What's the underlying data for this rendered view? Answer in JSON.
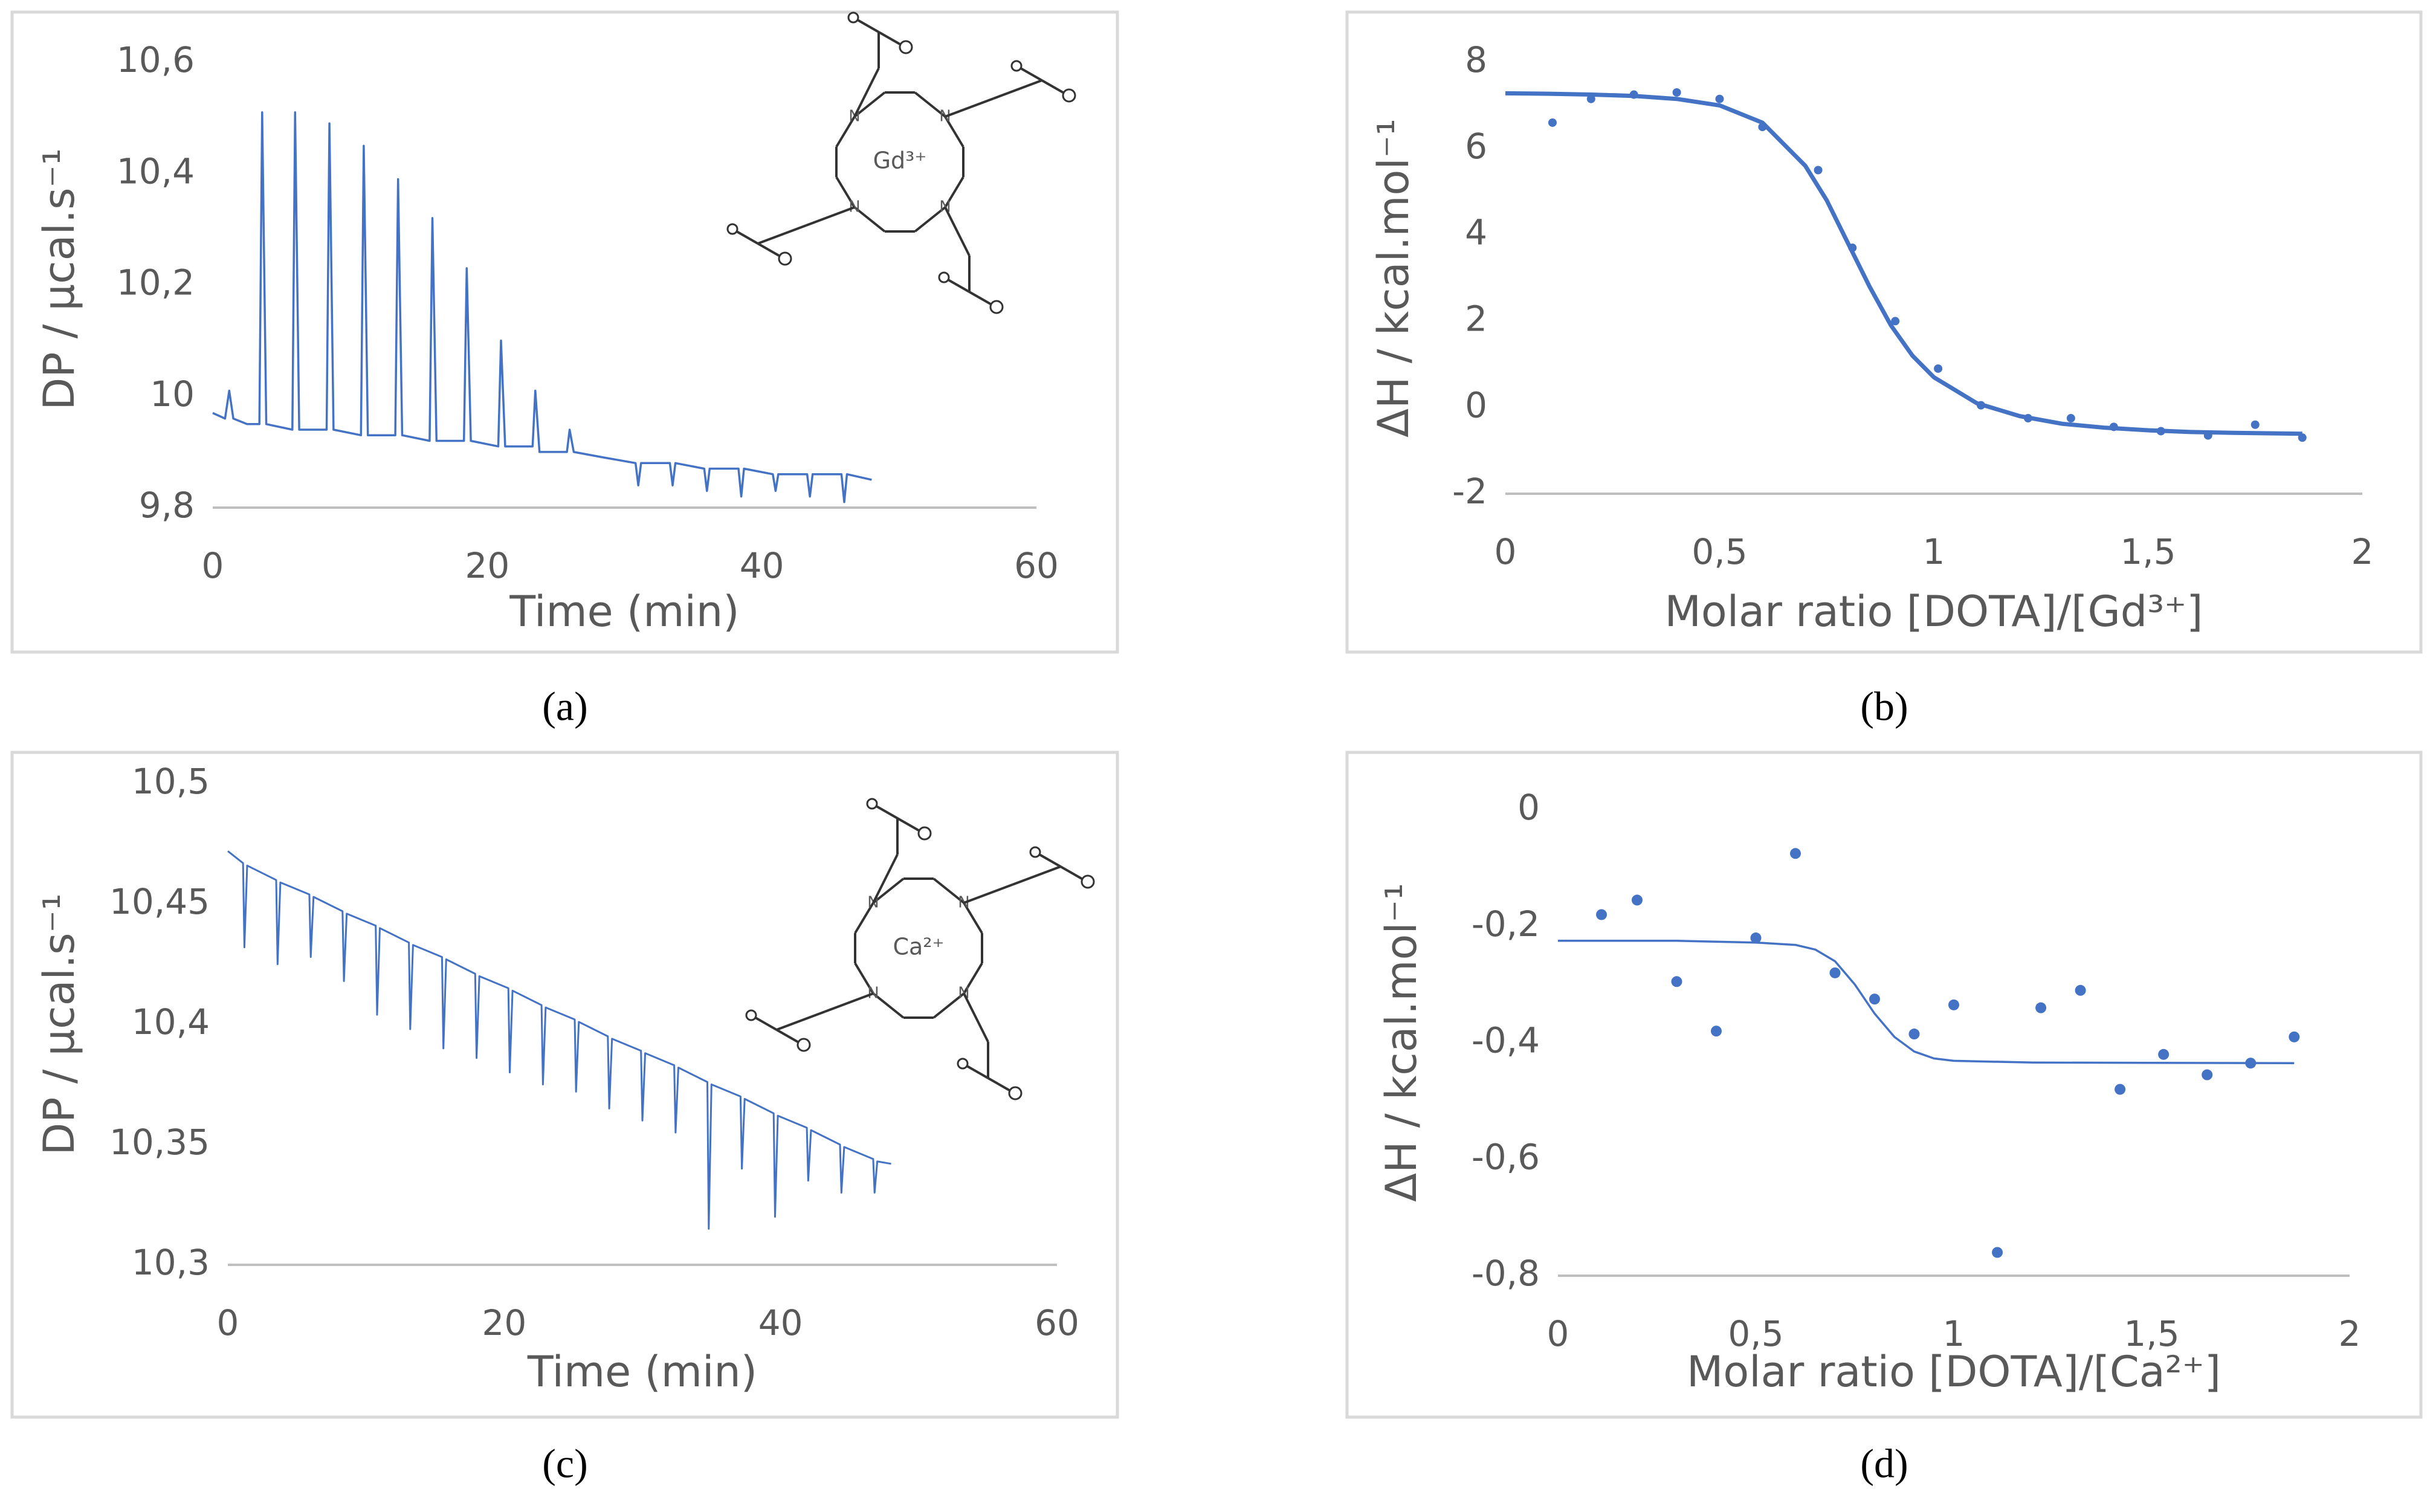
{
  "chart_data": [
    {
      "type": "line",
      "panel_label": "(a)",
      "ylabel": "DP / µcal.s⁻¹",
      "xlabel": "Time (min)",
      "annotation": {
        "text": "Gd³⁺",
        "color": "#e8393a"
      },
      "xlim": [
        0,
        60
      ],
      "xticks": [
        0,
        20,
        40,
        60
      ],
      "ylim": [
        9.8,
        10.6
      ],
      "yticks": [
        {
          "value": 9.8,
          "label": "9,8"
        },
        10,
        {
          "value": 10.2,
          "label": "10,2"
        },
        {
          "value": 10.4,
          "label": "10,4"
        },
        {
          "value": 10.6,
          "label": "10,6"
        }
      ],
      "grid": false,
      "series": [
        {
          "color": "#4472c4",
          "x": [
            0,
            0.9,
            1.2,
            1.5,
            2.5,
            3.4,
            3.6,
            3.9,
            5.8,
            6.0,
            6.3,
            8.3,
            8.5,
            8.8,
            10.8,
            11.0,
            11.3,
            13.3,
            13.5,
            13.8,
            15.8,
            16.0,
            16.3,
            18.3,
            18.5,
            18.8,
            20.8,
            21.0,
            21.3,
            23.3,
            23.5,
            23.8,
            25.8,
            26.0,
            26.3,
            28.5,
            30.8,
            31.0,
            31.2,
            33.3,
            33.5,
            33.7,
            35.8,
            36.0,
            36.2,
            38.3,
            38.5,
            38.7,
            40.8,
            41.0,
            41.2,
            43.3,
            43.5,
            43.7,
            45.8,
            46.0,
            46.2,
            48
          ],
          "values": [
            9.97,
            9.96,
            10.01,
            9.96,
            9.95,
            9.95,
            10.51,
            9.95,
            9.94,
            10.51,
            9.94,
            9.94,
            10.49,
            9.94,
            9.93,
            10.45,
            9.93,
            9.93,
            10.39,
            9.93,
            9.92,
            10.32,
            9.92,
            9.92,
            10.23,
            9.92,
            9.91,
            10.1,
            9.91,
            9.91,
            10.01,
            9.9,
            9.9,
            9.94,
            9.9,
            9.89,
            9.88,
            9.84,
            9.88,
            9.88,
            9.84,
            9.88,
            9.87,
            9.83,
            9.87,
            9.87,
            9.82,
            9.87,
            9.86,
            9.83,
            9.86,
            9.86,
            9.82,
            9.86,
            9.86,
            9.81,
            9.86,
            9.85
          ]
        }
      ]
    },
    {
      "type": "scatter",
      "panel_label": "(b)",
      "ylabel": "ΔH / kcal.mol⁻¹",
      "xlabel": "Molar ratio  [DOTA]/[Gd³⁺]",
      "xlim": [
        0,
        2
      ],
      "xticks": [
        0,
        {
          "value": 0.5,
          "label": "0,5"
        },
        1,
        {
          "value": 1.5,
          "label": "1,5"
        },
        2
      ],
      "ylim": [
        -2,
        8
      ],
      "yticks": [
        -2,
        0,
        2,
        4,
        6,
        8
      ],
      "grid": false,
      "series": [
        {
          "color": "#4472c4",
          "style": "markers",
          "x": [
            0.11,
            0.2,
            0.3,
            0.4,
            0.5,
            0.6,
            0.73,
            0.81,
            0.91,
            1.01,
            1.11,
            1.22,
            1.32,
            1.42,
            1.53,
            1.64,
            1.75,
            1.86
          ],
          "values": [
            6.6,
            7.15,
            7.25,
            7.3,
            7.15,
            6.5,
            5.5,
            3.7,
            2.0,
            0.9,
            0.05,
            -0.25,
            -0.25,
            -0.45,
            -0.55,
            -0.65,
            -0.4,
            -0.7
          ]
        },
        {
          "color": "#4472c4",
          "style": "line",
          "x": [
            0,
            0.1,
            0.2,
            0.3,
            0.4,
            0.5,
            0.6,
            0.7,
            0.75,
            0.8,
            0.85,
            0.9,
            0.95,
            1.0,
            1.1,
            1.2,
            1.3,
            1.4,
            1.5,
            1.6,
            1.7,
            1.86
          ],
          "values": [
            7.28,
            7.27,
            7.25,
            7.22,
            7.15,
            7.0,
            6.6,
            5.6,
            4.8,
            3.8,
            2.8,
            1.9,
            1.2,
            0.7,
            0.1,
            -0.2,
            -0.38,
            -0.47,
            -0.53,
            -0.57,
            -0.59,
            -0.61
          ]
        }
      ]
    },
    {
      "type": "line",
      "panel_label": "(c)",
      "ylabel": "DP / µcal.s⁻¹",
      "xlabel": "Time (min)",
      "annotation": {
        "text": "Ca²⁺",
        "color": "#5a9e3c"
      },
      "xlim": [
        0,
        60
      ],
      "xticks": [
        0,
        20,
        40,
        60
      ],
      "ylim": [
        10.3,
        10.5
      ],
      "yticks": [
        {
          "value": 10.3,
          "label": "10,3"
        },
        {
          "value": 10.35,
          "label": "10,35"
        },
        {
          "value": 10.4,
          "label": "10,4"
        },
        {
          "value": 10.45,
          "label": "10,45"
        },
        {
          "value": 10.5,
          "label": "10,5"
        }
      ],
      "grid": false,
      "series": [
        {
          "color": "#4472c4",
          "x": [
            0,
            1.1,
            1.2,
            1.4,
            3.5,
            3.6,
            3.8,
            5.9,
            6.0,
            6.2,
            8.3,
            8.4,
            8.6,
            10.7,
            10.8,
            11.0,
            13.1,
            13.2,
            13.4,
            15.5,
            15.6,
            15.8,
            17.9,
            18.0,
            18.2,
            20.3,
            20.4,
            20.6,
            22.7,
            22.8,
            23.0,
            25.1,
            25.2,
            25.4,
            27.5,
            27.6,
            27.8,
            29.9,
            30.0,
            30.2,
            32.3,
            32.4,
            32.6,
            34.7,
            34.8,
            35.0,
            37.1,
            37.2,
            37.4,
            39.5,
            39.6,
            39.8,
            41.9,
            42.0,
            42.2,
            44.3,
            44.4,
            44.6,
            46.7,
            46.8,
            47.0,
            48
          ],
          "values": [
            10.472,
            10.467,
            10.432,
            10.466,
            10.46,
            10.425,
            10.459,
            10.454,
            10.428,
            10.453,
            10.447,
            10.418,
            10.446,
            10.441,
            10.404,
            10.44,
            10.434,
            10.398,
            10.433,
            10.428,
            10.39,
            10.427,
            10.421,
            10.386,
            10.42,
            10.415,
            10.38,
            10.414,
            10.408,
            10.375,
            10.407,
            10.402,
            10.372,
            10.401,
            10.395,
            10.365,
            10.394,
            10.389,
            10.36,
            10.388,
            10.383,
            10.355,
            10.382,
            10.376,
            10.315,
            10.375,
            10.37,
            10.34,
            10.369,
            10.363,
            10.32,
            10.362,
            10.357,
            10.335,
            10.356,
            10.35,
            10.33,
            10.349,
            10.344,
            10.33,
            10.343,
            10.342
          ]
        }
      ]
    },
    {
      "type": "scatter",
      "panel_label": "(d)",
      "ylabel": "ΔH / kcal.mol⁻¹",
      "xlabel": "Molar ratio  [DOTA]/[Ca²⁺]",
      "xlim": [
        0,
        2
      ],
      "xticks": [
        0,
        {
          "value": 0.5,
          "label": "0,5"
        },
        1,
        {
          "value": 1.5,
          "label": "1,5"
        },
        2
      ],
      "ylim": [
        -0.8,
        0
      ],
      "yticks": [
        {
          "value": -0.8,
          "label": "-0,8"
        },
        {
          "value": -0.6,
          "label": "-0,6"
        },
        {
          "value": -0.4,
          "label": "-0,4"
        },
        {
          "value": -0.2,
          "label": "-0,2"
        },
        0
      ],
      "grid": false,
      "series": [
        {
          "color": "#4472c4",
          "style": "markers",
          "x": [
            0.11,
            0.2,
            0.3,
            0.4,
            0.5,
            0.6,
            0.7,
            0.8,
            0.9,
            1.0,
            1.11,
            1.22,
            1.32,
            1.42,
            1.53,
            1.64,
            1.75,
            1.86
          ],
          "values": [
            -0.18,
            -0.155,
            -0.295,
            -0.38,
            -0.22,
            -0.075,
            -0.28,
            -0.325,
            -0.385,
            -0.335,
            -0.76,
            -0.34,
            -0.31,
            -0.48,
            -0.42,
            -0.455,
            -0.435,
            -0.39
          ]
        },
        {
          "color": "#4472c4",
          "style": "line",
          "x": [
            0,
            0.3,
            0.5,
            0.6,
            0.65,
            0.7,
            0.75,
            0.8,
            0.85,
            0.9,
            0.95,
            1.0,
            1.2,
            1.86
          ],
          "values": [
            -0.225,
            -0.225,
            -0.228,
            -0.232,
            -0.24,
            -0.26,
            -0.3,
            -0.35,
            -0.39,
            -0.415,
            -0.427,
            -0.431,
            -0.434,
            -0.435
          ]
        }
      ]
    }
  ]
}
